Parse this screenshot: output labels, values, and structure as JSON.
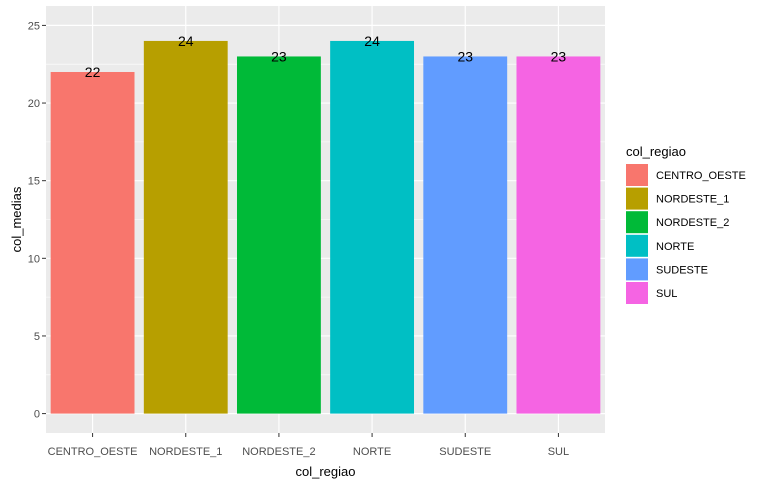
{
  "chart_data": {
    "type": "bar",
    "categories": [
      "CENTRO_OESTE",
      "NORDESTE_1",
      "NORDESTE_2",
      "NORTE",
      "SUDESTE",
      "SUL"
    ],
    "values": [
      22,
      24,
      23,
      24,
      23,
      23
    ],
    "data_labels": [
      "22",
      "24",
      "23",
      "24",
      "23",
      "23"
    ],
    "colors": [
      "#F8766D",
      "#B79F00",
      "#00BA38",
      "#00BFC4",
      "#619CFF",
      "#F564E3"
    ],
    "xlabel": "col_regiao",
    "ylabel": "col_medias",
    "ylim": [
      0,
      25
    ],
    "yticks": [
      0,
      5,
      10,
      15,
      20,
      25
    ],
    "ytick_labels": [
      "0",
      "5",
      "10",
      "15",
      "20",
      "25"
    ],
    "grid": true,
    "panel_background": "#EBEBEB",
    "legend": {
      "title": "col_regiao",
      "placement": "right",
      "entries": [
        "CENTRO_OESTE",
        "NORDESTE_1",
        "NORDESTE_2",
        "NORTE",
        "SUDESTE",
        "SUL"
      ]
    }
  }
}
